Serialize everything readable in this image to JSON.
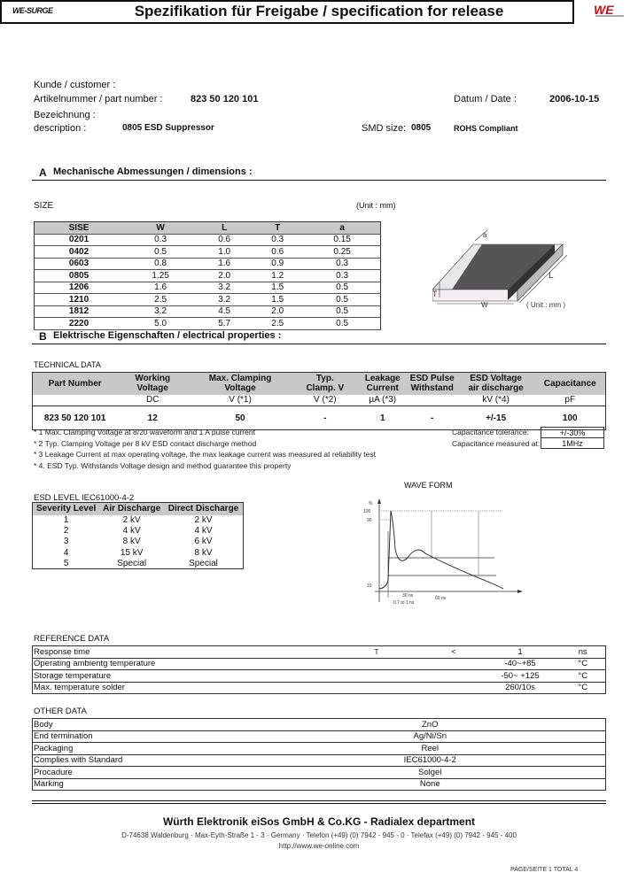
{
  "header": {
    "logo": "WE-SURGE",
    "title": "Spezifikation für Freigabe / specification for release",
    "brand_color": "#d0101c"
  },
  "info": {
    "customer_label": "Kunde / customer :",
    "part_label": "Artikelnummer / part number :",
    "part_number": "823 50 120 101",
    "date_label": "Datum / Date :",
    "date": "2006-10-15",
    "designation_label": "Bezeichnung :",
    "description_label": "description :",
    "description": "0805 ESD Suppressor",
    "smd_label": "SMD size:",
    "smd_size": "0805",
    "rohs": "ROHS Compliant"
  },
  "section_a": {
    "letter": "A",
    "title": "Mechanische Abmessungen / dimensions :",
    "size_label": "SIZE",
    "unit": "(Unit : mm)",
    "headers": [
      "SISE",
      "W",
      "L",
      "T",
      "a"
    ],
    "rows": [
      [
        "0201",
        "0.3",
        "0.6",
        "0.3",
        "0.15"
      ],
      [
        "0402",
        "0.5",
        "1.0",
        "0.6",
        "0.25"
      ],
      [
        "0603",
        "0.8",
        "1.6",
        "0.9",
        "0.3"
      ],
      [
        "0805",
        "1.25",
        "2.0",
        "1.2",
        "0.3"
      ],
      [
        "1206",
        "1.6",
        "3.2",
        "1.5",
        "0.5"
      ],
      [
        "1210",
        "2.5",
        "3.2",
        "1.5",
        "0.5"
      ],
      [
        "1812",
        "3.2",
        "4.5",
        "2.0",
        "0.5"
      ],
      [
        "2220",
        "5.0",
        "5.7",
        "2.5",
        "0.5"
      ]
    ],
    "drawing": {
      "a": "a",
      "L": "L",
      "T": "T",
      "W": "W",
      "unit": "( Unit : mm )"
    }
  },
  "section_b": {
    "letter": "B",
    "title": "Elektrische Eigenschaften  /  electrical properties :"
  },
  "technical": {
    "label": "TECHNICAL  DATA",
    "headers": [
      [
        "Part Number",
        ""
      ],
      [
        "Working",
        "Voltage"
      ],
      [
        "Max. Clamping",
        "Voltage"
      ],
      [
        "Typ.",
        "Clamp. V"
      ],
      [
        "Leakage",
        "Current"
      ],
      [
        "ESD Pulse",
        "Withstand"
      ],
      [
        "ESD Voltage",
        "air discharge"
      ],
      [
        "Capacitance",
        ""
      ]
    ],
    "units": [
      "",
      "DC",
      "V (*1)",
      "V (*2)",
      "µA (*3)",
      "",
      "kV (*4)",
      "pF"
    ],
    "row": [
      "823 50 120 101",
      "12",
      "50",
      "-",
      "1",
      "-",
      "+/-15",
      "100"
    ],
    "notes": [
      "* 1 Max. Clamping Voltage at 8/20 waveform and 1 A pulse current",
      "* 2 Typ. Clamping Voltage per 8 kV ESD contact discharge method",
      "* 3 Leakage Current at max operating voltage, the max leakage current was measured at reliability test",
      "* 4. ESD Typ. Withstands Voltage design and method guarantee this property"
    ],
    "cap_tol_label": "Capacitance tolerance:",
    "cap_tol": "+/-30%",
    "cap_meas_label": "Capacitance measured at:",
    "cap_meas": "1MHz"
  },
  "esd": {
    "label": "ESD LEVEL IEC61000-4-2",
    "headers": [
      "Severity Level",
      "Air Discharge",
      "Direct Discharge"
    ],
    "rows": [
      [
        "1",
        "2 kV",
        "2 kV"
      ],
      [
        "2",
        "4 kV",
        "4 kV"
      ],
      [
        "3",
        "8 kV",
        "6 kV"
      ],
      [
        "4",
        "15 kV",
        "8 kV"
      ],
      [
        "5",
        "Special",
        "Special"
      ]
    ]
  },
  "waveform": {
    "title": "WAVE FORM",
    "y_unit": "%",
    "y_ticks": [
      "100",
      "90",
      "10"
    ],
    "t1": "30 ns",
    "t2": "60 ns",
    "t3": "0.7 to 1 ns"
  },
  "reference": {
    "label": "REFERENCE DATA",
    "rows": [
      [
        "Response time",
        "T",
        "<",
        "1",
        "ns"
      ],
      [
        "Operating ambientg temperature",
        "",
        "",
        "-40~+85",
        "°C"
      ],
      [
        "Storage temperature",
        "",
        "",
        "-50~ +125",
        "°C"
      ],
      [
        "Max. temperature solder",
        "",
        "",
        "260/10s",
        "°C"
      ]
    ]
  },
  "other": {
    "label": "OTHER DATA",
    "rows": [
      [
        "Body",
        "ZnO"
      ],
      [
        "End termination",
        "Ag/Ni/Sn"
      ],
      [
        "Packaging",
        "Reel"
      ],
      [
        "Complies with Standard",
        "IEC61000-4-2"
      ],
      [
        "Procadure",
        "Solgel"
      ],
      [
        "Marking",
        "None"
      ]
    ]
  },
  "footer": {
    "company": "Würth Elektronik eiSos GmbH & Co.KG - Radialex department",
    "address": "D-74638 Waldenburg · Max-Eyth-Straße 1 - 3 · Germany · Telefon (+49) (0) 7942 - 945 - 0 · Telefax (+49) (0) 7942 - 945 - 400",
    "url": "http://www.we-online.com",
    "page": "PAGE/SEITE 1   TOTAL 4"
  }
}
